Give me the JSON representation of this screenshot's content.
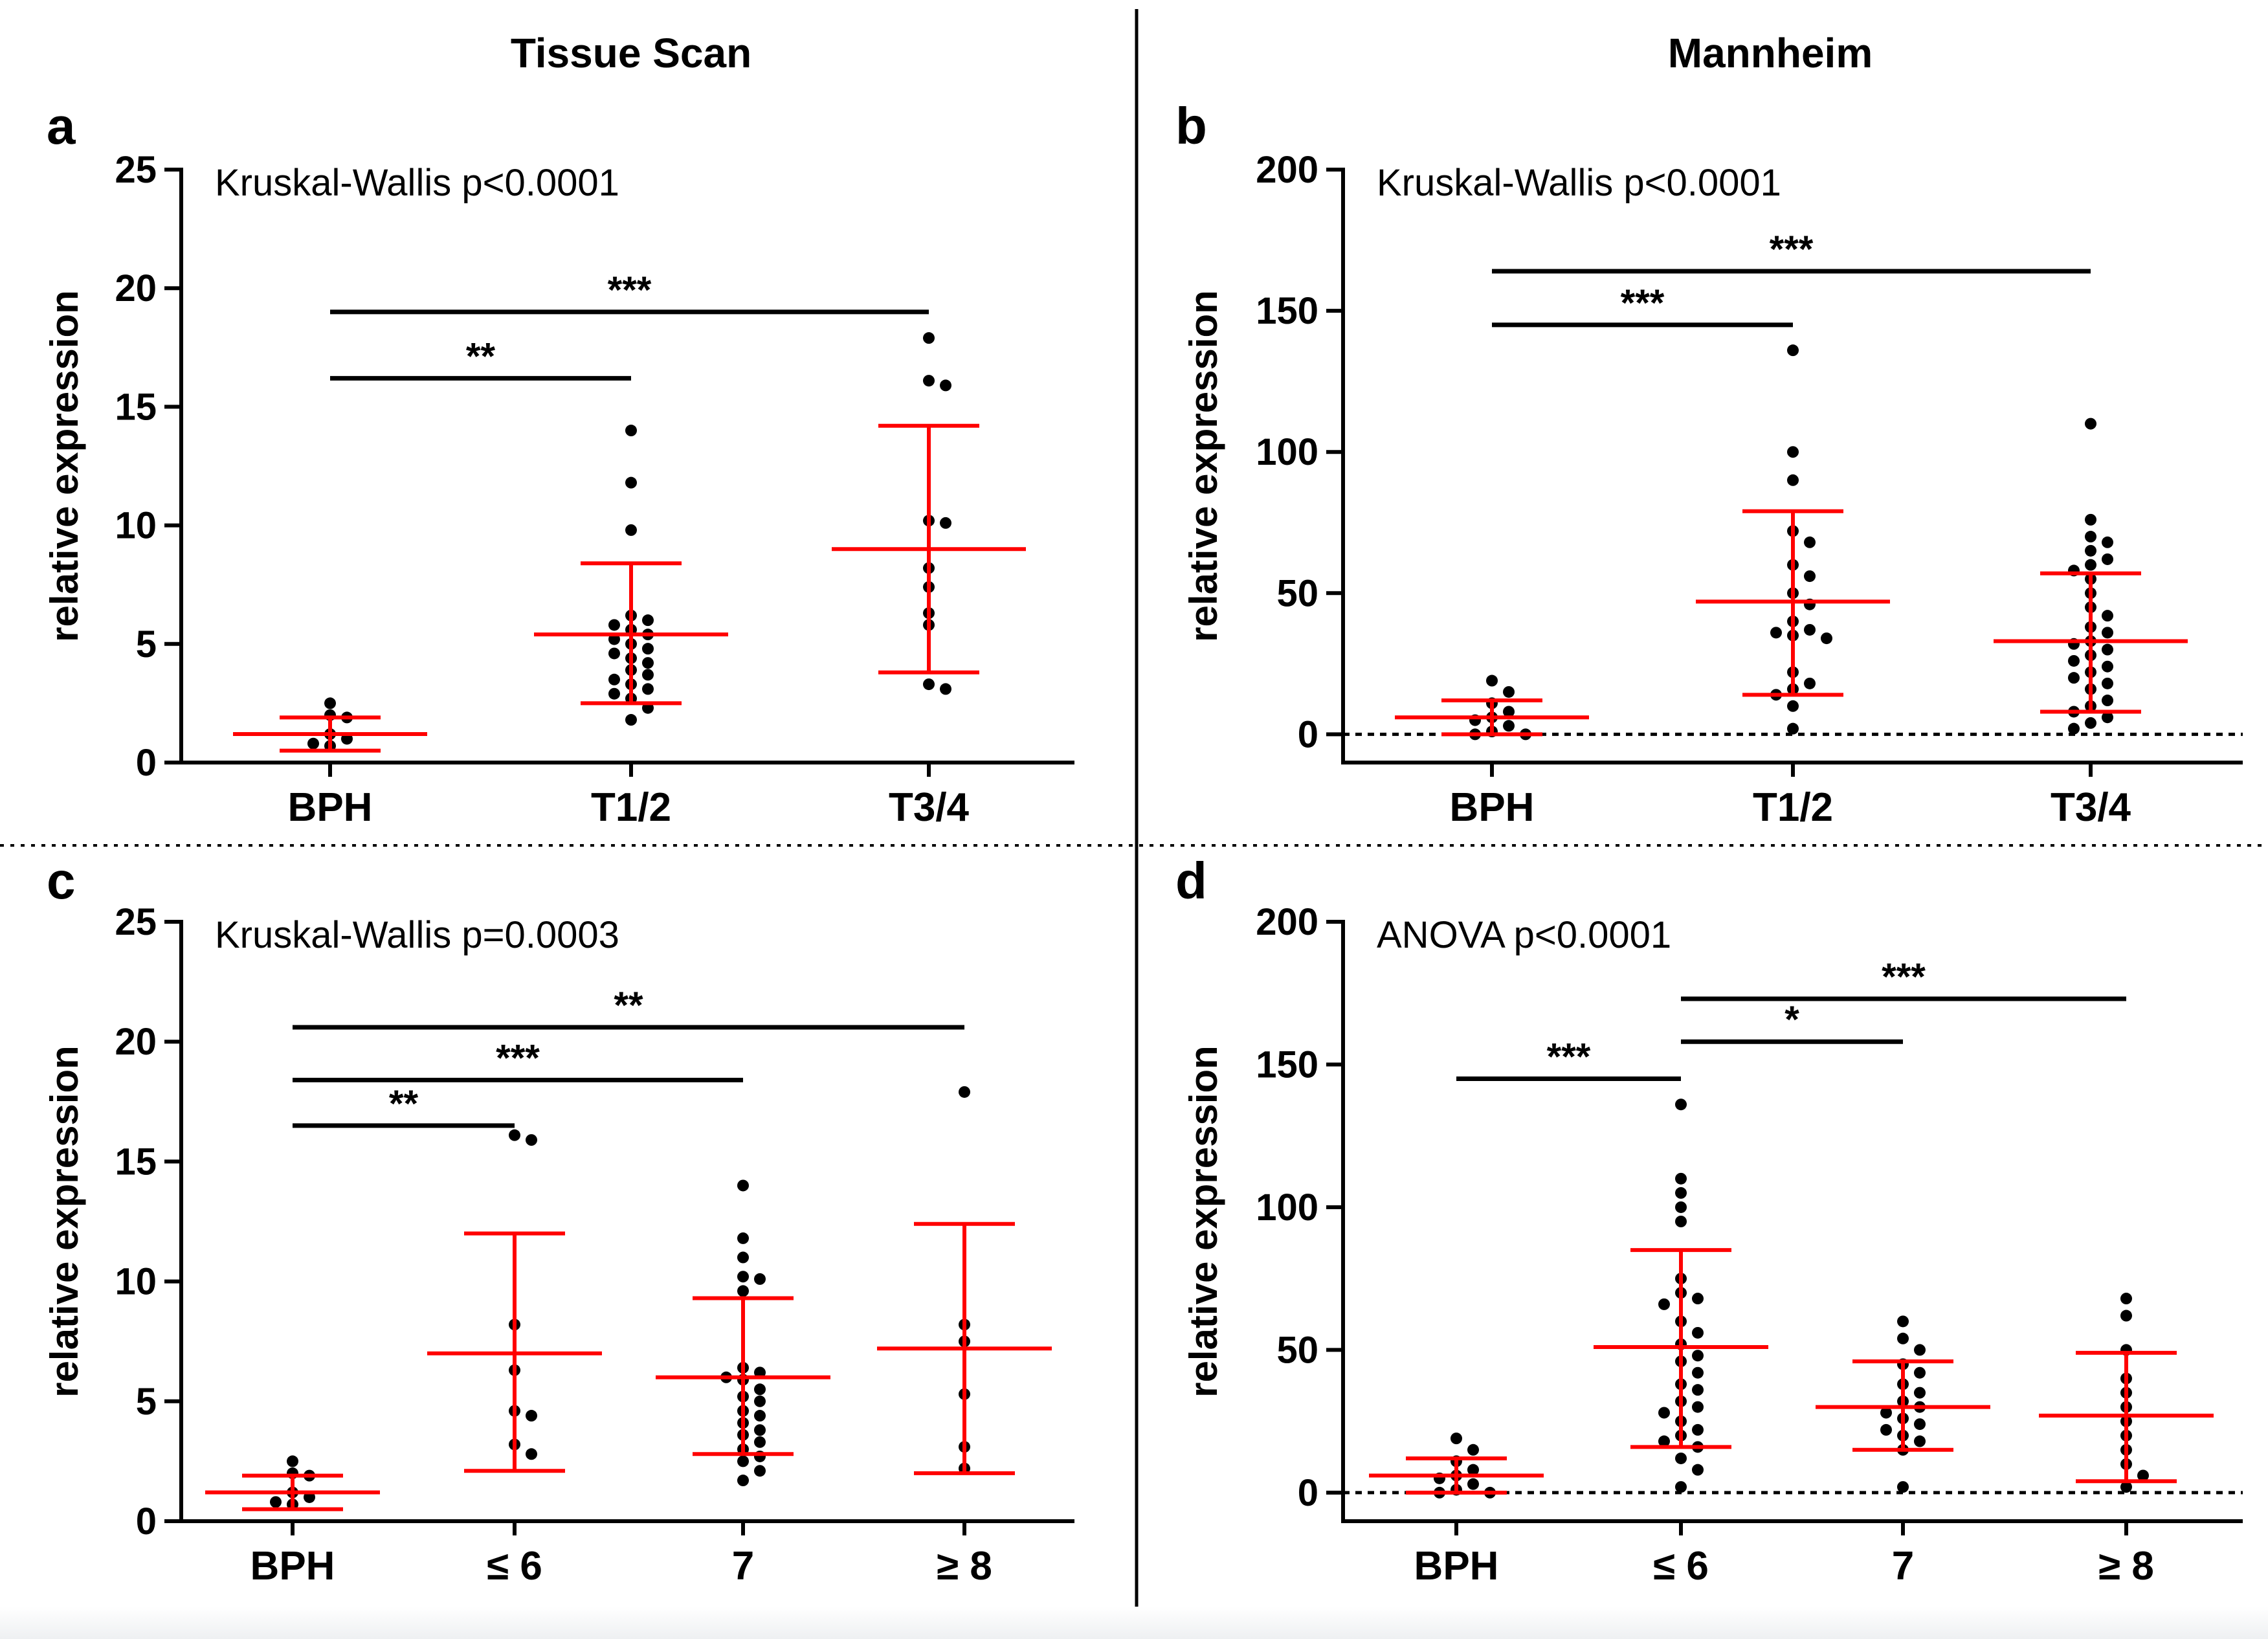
{
  "colors": {
    "points": "#000000",
    "summary": "#ff0000",
    "axes": "#000000"
  },
  "column_titles": [
    "Tissue Scan",
    "Mannheim"
  ],
  "chart_data": [
    {
      "type": "scatter",
      "panel": "a",
      "stat_text": "Kruskal-Wallis p<0.0001",
      "ylabel": "relative expression",
      "ylim": [
        0,
        25
      ],
      "yticks": [
        0,
        5,
        10,
        15,
        20,
        25
      ],
      "categories": [
        "BPH",
        "T1/2",
        "T3/4"
      ],
      "zero_line": false,
      "groups": [
        {
          "points": [
            2.5,
            2.0,
            1.9,
            1.2,
            1.0,
            0.8,
            0.7
          ],
          "mean": 1.2,
          "lower": 0.5,
          "upper": 1.9
        },
        {
          "points": [
            14.0,
            11.8,
            9.8,
            6.2,
            6.0,
            5.8,
            5.6,
            5.4,
            5.2,
            5.0,
            4.8,
            4.6,
            4.4,
            4.2,
            3.9,
            3.7,
            3.5,
            3.3,
            3.1,
            2.9,
            2.7,
            2.3,
            1.8
          ],
          "mean": 5.4,
          "lower": 2.5,
          "upper": 8.4
        },
        {
          "points": [
            17.9,
            16.1,
            15.9,
            10.2,
            10.1,
            8.2,
            7.4,
            6.3,
            5.8,
            3.3,
            3.1
          ],
          "mean": 9.0,
          "lower": 3.8,
          "upper": 14.2
        }
      ],
      "significance": [
        {
          "from": 0,
          "to": 1,
          "y": 16.2,
          "label": "**"
        },
        {
          "from": 0,
          "to": 2,
          "y": 19.0,
          "label": "***"
        }
      ]
    },
    {
      "type": "scatter",
      "panel": "b",
      "stat_text": "Kruskal-Wallis p<0.0001",
      "ylabel": "relative expression",
      "ylim": [
        -10,
        200
      ],
      "yticks": [
        0,
        50,
        100,
        150,
        200
      ],
      "categories": [
        "BPH",
        "T1/2",
        "T3/4"
      ],
      "zero_line": true,
      "groups": [
        {
          "points": [
            19,
            15,
            11,
            8,
            6,
            5,
            3,
            1,
            0,
            0
          ],
          "mean": 6,
          "lower": 0,
          "upper": 12
        },
        {
          "points": [
            136,
            100,
            90,
            72,
            68,
            60,
            56,
            50,
            46,
            40,
            37,
            36,
            35,
            34,
            22,
            18,
            16,
            14,
            10,
            2
          ],
          "mean": 47,
          "lower": 14,
          "upper": 79
        },
        {
          "points": [
            110,
            76,
            70,
            68,
            65,
            62,
            60,
            58,
            55,
            50,
            45,
            42,
            38,
            36,
            33,
            32,
            30,
            28,
            26,
            24,
            22,
            20,
            18,
            16,
            12,
            10,
            8,
            6,
            4,
            2
          ],
          "mean": 33,
          "lower": 8,
          "upper": 57
        }
      ],
      "significance": [
        {
          "from": 0,
          "to": 1,
          "y": 145,
          "label": "***"
        },
        {
          "from": 0,
          "to": 2,
          "y": 164,
          "label": "***"
        }
      ]
    },
    {
      "type": "scatter",
      "panel": "c",
      "stat_text": "Kruskal-Wallis p=0.0003",
      "ylabel": "relative expression",
      "ylim": [
        0,
        25
      ],
      "yticks": [
        0,
        5,
        10,
        15,
        20,
        25
      ],
      "categories": [
        "BPH",
        "≤ 6",
        "7",
        "≥ 8"
      ],
      "zero_line": false,
      "groups": [
        {
          "points": [
            2.5,
            2.0,
            1.9,
            1.2,
            1.0,
            0.8,
            0.7
          ],
          "mean": 1.2,
          "lower": 0.5,
          "upper": 1.9
        },
        {
          "points": [
            16.1,
            15.9,
            8.2,
            6.3,
            4.6,
            4.4,
            3.2,
            2.8
          ],
          "mean": 7.0,
          "lower": 2.1,
          "upper": 12.0
        },
        {
          "points": [
            14.0,
            11.8,
            11.0,
            10.2,
            10.1,
            9.6,
            6.4,
            6.2,
            6.0,
            5.9,
            5.5,
            5.2,
            5.0,
            4.6,
            4.4,
            4.1,
            3.8,
            3.6,
            3.3,
            3.0,
            2.7,
            2.5,
            2.1,
            1.7
          ],
          "mean": 6.0,
          "lower": 2.8,
          "upper": 9.3
        },
        {
          "points": [
            17.9,
            8.2,
            7.5,
            5.3,
            3.1,
            2.2
          ],
          "mean": 7.2,
          "lower": 2.0,
          "upper": 12.4
        }
      ],
      "significance": [
        {
          "from": 0,
          "to": 1,
          "y": 16.5,
          "label": "**"
        },
        {
          "from": 0,
          "to": 2,
          "y": 18.4,
          "label": "***"
        },
        {
          "from": 0,
          "to": 3,
          "y": 20.6,
          "label": "**"
        }
      ]
    },
    {
      "type": "scatter",
      "panel": "d",
      "stat_text": "ANOVA p<0.0001",
      "ylabel": "relative expression",
      "ylim": [
        -10,
        200
      ],
      "yticks": [
        0,
        50,
        100,
        150,
        200
      ],
      "categories": [
        "BPH",
        "≤ 6",
        "7",
        "≥ 8"
      ],
      "zero_line": true,
      "groups": [
        {
          "points": [
            19,
            15,
            11,
            8,
            6,
            5,
            3,
            1,
            0,
            0
          ],
          "mean": 6,
          "lower": 0,
          "upper": 12
        },
        {
          "points": [
            136,
            110,
            105,
            100,
            95,
            75,
            70,
            68,
            66,
            60,
            56,
            52,
            48,
            46,
            42,
            38,
            36,
            32,
            30,
            28,
            25,
            22,
            20,
            18,
            16,
            12,
            8,
            2
          ],
          "mean": 51,
          "lower": 16,
          "upper": 85
        },
        {
          "points": [
            60,
            54,
            50,
            45,
            42,
            38,
            35,
            32,
            30,
            28,
            26,
            24,
            22,
            20,
            18,
            15,
            2
          ],
          "mean": 30,
          "lower": 15,
          "upper": 46
        },
        {
          "points": [
            68,
            62,
            50,
            40,
            35,
            30,
            25,
            20,
            15,
            10,
            6,
            2
          ],
          "mean": 27,
          "lower": 4,
          "upper": 49
        }
      ],
      "significance": [
        {
          "from": 0,
          "to": 1,
          "y": 145,
          "label": "***"
        },
        {
          "from": 1,
          "to": 2,
          "y": 158,
          "label": "*"
        },
        {
          "from": 1,
          "to": 3,
          "y": 173,
          "label": "***"
        }
      ]
    }
  ]
}
